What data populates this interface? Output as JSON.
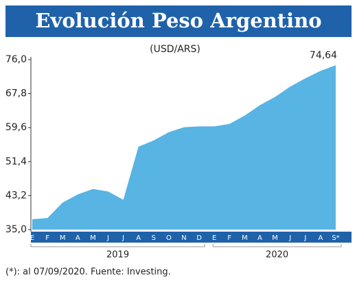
{
  "chart_data": {
    "type": "area",
    "title": "Evolución Peso Argentino",
    "subtitle": "(USD/ARS)",
    "footnote": "(*): al 07/09/2020. Fuente: Investing.",
    "categories": [
      "E",
      "F",
      "M",
      "A",
      "M",
      "J",
      "J",
      "A",
      "S",
      "O",
      "N",
      "D",
      "E",
      "F",
      "M",
      "A",
      "M",
      "J",
      "J",
      "A",
      "S*"
    ],
    "year_labels": [
      "2019",
      "2020"
    ],
    "values": [
      37.5,
      37.8,
      41.5,
      43.5,
      44.8,
      44.2,
      42.2,
      55.0,
      56.5,
      58.5,
      59.7,
      59.9,
      59.9,
      60.5,
      62.5,
      65.0,
      67.0,
      69.5,
      71.5,
      73.3,
      74.64
    ],
    "value_labels": [
      null,
      null,
      null,
      null,
      null,
      null,
      null,
      null,
      null,
      null,
      null,
      null,
      null,
      null,
      null,
      null,
      null,
      null,
      null,
      null,
      "74,64"
    ],
    "color": "#58b4e2",
    "ylim": [
      35.0,
      76.0
    ],
    "yticks": [
      {
        "value": 35.0,
        "label": "35,0"
      },
      {
        "value": 43.2,
        "label": "43,2"
      },
      {
        "value": 51.4,
        "label": "51,4"
      },
      {
        "value": 59.6,
        "label": "59,6"
      },
      {
        "value": 67.8,
        "label": "67,8"
      },
      {
        "value": 76.0,
        "label": "76,0"
      }
    ]
  }
}
